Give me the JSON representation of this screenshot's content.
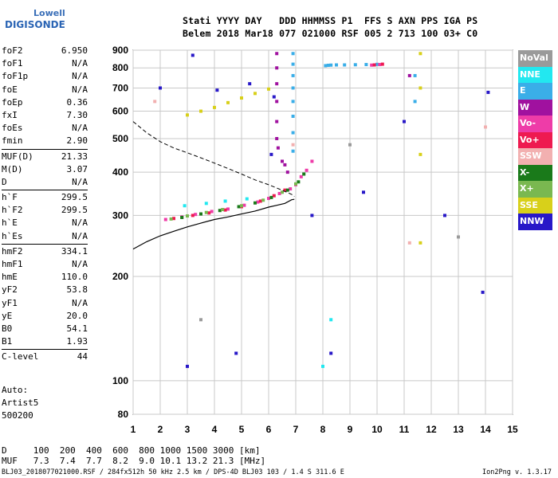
{
  "logo": {
    "top": "Lowell",
    "bottom": "DIGISONDE"
  },
  "header": {
    "line1": "Stati YYYY DAY   DDD HHMMSS P1  FFS S AXN PPS IGA PS",
    "line2": "Belem 2018 Mar18 077 021000 RSF 005 2 713 100 03+ C0"
  },
  "params_groups": [
    [
      {
        "k": "foF2",
        "v": "6.950"
      },
      {
        "k": "foF1",
        "v": "N/A"
      },
      {
        "k": "foF1p",
        "v": "N/A"
      },
      {
        "k": "foE",
        "v": "N/A"
      },
      {
        "k": "foEp",
        "v": "0.36"
      },
      {
        "k": "fxI",
        "v": "7.30"
      },
      {
        "k": "foEs",
        "v": "N/A"
      },
      {
        "k": "fmin",
        "v": "2.90"
      }
    ],
    [
      {
        "k": "MUF(D)",
        "v": "21.33"
      },
      {
        "k": "M(D)",
        "v": "3.07"
      },
      {
        "k": "D",
        "v": "N/A"
      }
    ],
    [
      {
        "k": "h`F",
        "v": "299.5"
      },
      {
        "k": "h`F2",
        "v": "299.5"
      },
      {
        "k": "h`E",
        "v": "N/A"
      },
      {
        "k": "h`Es",
        "v": "N/A"
      }
    ],
    [
      {
        "k": "hmF2",
        "v": "334.1"
      },
      {
        "k": "hmF1",
        "v": "N/A"
      },
      {
        "k": "hmE",
        "v": "110.0"
      },
      {
        "k": "yF2",
        "v": "53.8"
      },
      {
        "k": "yF1",
        "v": "N/A"
      },
      {
        "k": "yE",
        "v": "20.0"
      },
      {
        "k": "B0",
        "v": "54.1"
      },
      {
        "k": "B1",
        "v": "1.93"
      }
    ],
    [
      {
        "k": "C-level",
        "v": "44"
      }
    ]
  ],
  "extra": {
    "l1": "Auto:",
    "l2": "Artist5",
    "l3": "500200"
  },
  "legend": [
    {
      "label": "NoVal",
      "color": "#9a9a9a"
    },
    {
      "label": "NNE",
      "color": "#22e8f0"
    },
    {
      "label": "E",
      "color": "#3aaee8"
    },
    {
      "label": "W",
      "color": "#a0119f"
    },
    {
      "label": "Vo-",
      "color": "#ee3ca8"
    },
    {
      "label": "Vo+",
      "color": "#ee1a50"
    },
    {
      "label": "SSW",
      "color": "#f2b0b0"
    },
    {
      "label": "X-",
      "color": "#1a7a1a"
    },
    {
      "label": "X+",
      "color": "#7ab850"
    },
    {
      "label": "SSE",
      "color": "#d8d01a"
    },
    {
      "label": "NNW",
      "color": "#2818c8"
    }
  ],
  "dmuf": {
    "d_line": "D     100  200  400  600  800 1000 1500 3000 [km]",
    "muf_line": "MUF   7.3  7.4  7.7  8.2  9.0 10.1 13.2 21.3 [MHz]"
  },
  "footer": {
    "left": "BLJ03_2018077021000.RSF / 284fx512h 50 kHz 2.5 km / DPS-4D BLJ03 103 / 1.4 S 311.6 E",
    "right": "Ion2Png v. 1.3.17"
  },
  "chart_data": {
    "type": "scatter",
    "title": "",
    "xlabel": "",
    "ylabel": "",
    "xlim": [
      1,
      15
    ],
    "ylim": [
      80,
      900
    ],
    "x_ticks": [
      1,
      2,
      3,
      4,
      5,
      6,
      7,
      8,
      9,
      10,
      11,
      12,
      13,
      14,
      15
    ],
    "y_ticks": [
      80,
      100,
      200,
      300,
      400,
      500,
      600,
      700,
      800,
      900
    ],
    "traces": [
      {
        "name": "E",
        "color": "#3aaee8",
        "x": [
          6.9,
          6.9,
          6.9,
          6.9,
          6.9,
          6.9,
          6.9,
          6.9,
          8.1,
          8.2,
          8.3,
          8.5,
          8.8,
          9.2,
          9.6,
          10.0,
          11.4,
          11.4
        ],
        "y": [
          880,
          820,
          760,
          700,
          640,
          580,
          520,
          460,
          812,
          814,
          815,
          816,
          816,
          817,
          818,
          819,
          760,
          640
        ]
      },
      {
        "name": "W",
        "color": "#a0119f",
        "x": [
          6.3,
          6.3,
          6.3,
          6.3,
          6.3,
          6.3,
          6.35,
          6.5,
          6.6,
          6.7,
          11.2
        ],
        "y": [
          880,
          800,
          720,
          640,
          560,
          500,
          470,
          430,
          420,
          400,
          760
        ]
      },
      {
        "name": "Vo-",
        "color": "#ee3ca8",
        "x": [
          2.2,
          2.8,
          3.3,
          3.9,
          4.5,
          5.1,
          5.6,
          6.0,
          6.4,
          6.8,
          7.0,
          7.2,
          7.4,
          7.6,
          9.8,
          10.1
        ],
        "y": [
          292,
          297,
          302,
          308,
          313,
          321,
          328,
          336,
          347,
          358,
          368,
          388,
          405,
          430,
          815,
          818
        ]
      },
      {
        "name": "Vo+",
        "color": "#ee1a50",
        "x": [
          2.5,
          3.2,
          3.8,
          4.4,
          5.0,
          5.7,
          6.2,
          6.6,
          9.9,
          10.2
        ],
        "y": [
          294,
          300,
          305,
          311,
          318,
          330,
          342,
          355,
          816,
          820
        ]
      },
      {
        "name": "X-",
        "color": "#1a7a1a",
        "x": [
          2.8,
          3.5,
          4.2,
          4.9,
          5.5,
          6.1,
          6.7,
          7.1,
          7.3
        ],
        "y": [
          296,
          303,
          310,
          318,
          326,
          338,
          355,
          375,
          395
        ]
      },
      {
        "name": "X+",
        "color": "#7ab850",
        "x": [
          2.4,
          3.0,
          3.7,
          4.3,
          5.0,
          5.8,
          6.5,
          7.0
        ],
        "y": [
          293,
          299,
          306,
          312,
          320,
          332,
          350,
          370
        ]
      },
      {
        "name": "SSE",
        "color": "#d8d01a",
        "x": [
          3.0,
          3.5,
          4.0,
          4.5,
          5.0,
          5.5,
          6.0,
          11.6,
          11.6,
          11.6,
          11.6
        ],
        "y": [
          585,
          600,
          615,
          635,
          655,
          675,
          695,
          880,
          700,
          450,
          250
        ]
      },
      {
        "name": "NNW",
        "color": "#2818c8",
        "x": [
          2.0,
          3.2,
          4.1,
          5.3,
          6.1,
          6.2,
          7.6,
          8.3,
          9.5,
          11.0,
          12.5,
          13.9,
          14.1,
          4.8,
          3.0
        ],
        "y": [
          700,
          870,
          690,
          720,
          450,
          660,
          300,
          120,
          350,
          560,
          300,
          180,
          680,
          120,
          110
        ]
      },
      {
        "name": "NNE",
        "color": "#22e8f0",
        "x": [
          2.9,
          3.7,
          4.4,
          5.2,
          8.0,
          8.3
        ],
        "y": [
          320,
          325,
          330,
          335,
          110,
          150
        ]
      },
      {
        "name": "SSW",
        "color": "#f2b0b0",
        "x": [
          1.8,
          6.9,
          11.2,
          14.0
        ],
        "y": [
          640,
          480,
          250,
          540
        ]
      },
      {
        "name": "NoVal",
        "color": "#9a9a9a",
        "x": [
          3.5,
          9.0,
          13.0
        ],
        "y": [
          150,
          480,
          260
        ]
      }
    ],
    "fitted_profile": {
      "x": [
        1.0,
        1.5,
        2.0,
        2.5,
        3.0,
        3.5,
        4.0,
        4.5,
        5.0,
        5.5,
        6.0,
        6.3,
        6.6,
        6.85,
        6.95
      ],
      "y": [
        240,
        252,
        262,
        270,
        278,
        285,
        292,
        297,
        303,
        309,
        317,
        321,
        325,
        333,
        334
      ]
    },
    "fitted_trace_dashed": {
      "x": [
        1.0,
        1.5,
        2.0,
        2.5,
        3.0,
        3.5,
        4.0,
        4.5,
        5.0,
        5.5,
        6.0,
        6.3,
        6.6,
        6.85,
        6.95
      ],
      "y": [
        560,
        520,
        490,
        470,
        455,
        440,
        425,
        410,
        395,
        380,
        368,
        360,
        352,
        345,
        340
      ]
    }
  }
}
